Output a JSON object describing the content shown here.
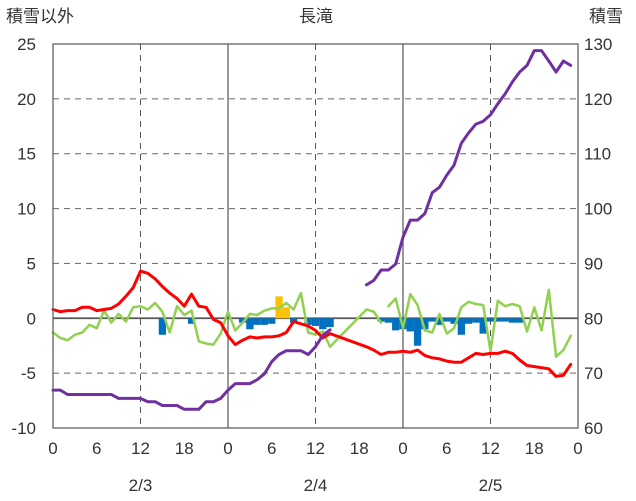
{
  "chart_data": {
    "type": "line",
    "title": "長滝",
    "ylabel_left": "積雪以外",
    "ylabel_right": "積雪",
    "ylim_left": [
      -10,
      25
    ],
    "ylim_right": [
      60,
      130
    ],
    "yticks_left": [
      "25",
      "20",
      "15",
      "10",
      "5",
      "0",
      "-5",
      "-10"
    ],
    "yticks_right": [
      "130",
      "120",
      "110",
      "100",
      "90",
      "80",
      "70",
      "60"
    ],
    "xlim": [
      0,
      72
    ],
    "xtick_values": [
      0,
      6,
      12,
      18,
      24,
      30,
      36,
      42,
      48,
      54,
      60,
      66,
      72
    ],
    "xtick_labels": [
      "0",
      "6",
      "12",
      "18",
      "0",
      "6",
      "12",
      "18",
      "0",
      "6",
      "12",
      "18",
      "0"
    ],
    "date_labels": [
      {
        "x": 12,
        "text": "2/3"
      },
      {
        "x": 36,
        "text": "2/4"
      },
      {
        "x": 60,
        "text": "2/5"
      }
    ],
    "day_separators": [
      24,
      48
    ],
    "dashed_gridlines_x": [
      12,
      36,
      60
    ],
    "zero_line": true,
    "colors": {
      "snow_depth": "#7030a0",
      "temperature": "#ff0000",
      "wind": "#92d050",
      "precip_blue": "#0070c0",
      "precip_yellow": "#ffc000"
    },
    "snow_depth": [
      [
        0,
        66.9
      ],
      [
        1,
        66.9
      ],
      [
        2,
        66.1
      ],
      [
        3,
        66.1
      ],
      [
        4,
        66.1
      ],
      [
        5,
        66.1
      ],
      [
        6,
        66.1
      ],
      [
        7,
        66.1
      ],
      [
        8,
        66.1
      ],
      [
        9,
        65.4
      ],
      [
        10,
        65.4
      ],
      [
        11,
        65.4
      ],
      [
        12,
        65.4
      ],
      [
        13,
        64.8
      ],
      [
        14,
        64.8
      ],
      [
        15,
        64.1
      ],
      [
        16,
        64.1
      ],
      [
        17,
        64.1
      ],
      [
        18,
        63.4
      ],
      [
        19,
        63.4
      ],
      [
        20,
        63.4
      ],
      [
        21,
        64.8
      ],
      [
        22,
        64.8
      ],
      [
        23,
        65.4
      ],
      [
        24,
        66.9
      ],
      [
        25,
        68.1
      ],
      [
        26,
        68.1
      ],
      [
        27,
        68.1
      ],
      [
        28,
        68.8
      ],
      [
        29,
        69.9
      ],
      [
        30,
        72.1
      ],
      [
        31,
        73.4
      ],
      [
        32,
        74.1
      ],
      [
        33,
        74.1
      ],
      [
        34,
        74.1
      ],
      [
        35,
        73.4
      ],
      [
        36,
        74.8
      ],
      [
        37,
        76.9
      ],
      [
        38,
        77.9
      ],
      [
        39,
        null
      ],
      [
        40,
        null
      ],
      [
        41,
        null
      ],
      [
        42,
        null
      ],
      [
        43,
        null
      ],
      [
        44,
        null
      ],
      [
        45,
        null
      ],
      [
        43,
        86.1
      ],
      [
        44,
        86.9
      ],
      [
        45,
        88.8
      ],
      [
        46,
        88.8
      ],
      [
        47,
        89.9
      ],
      [
        48,
        94.8
      ],
      [
        49,
        97.9
      ],
      [
        50,
        97.9
      ],
      [
        51,
        99.1
      ],
      [
        52,
        102.9
      ],
      [
        53,
        103.9
      ],
      [
        54,
        106.1
      ],
      [
        55,
        107.9
      ],
      [
        56,
        111.9
      ],
      [
        57,
        113.8
      ],
      [
        58,
        115.4
      ],
      [
        59,
        115.9
      ],
      [
        60,
        117.1
      ],
      [
        61,
        119.1
      ],
      [
        62,
        120.9
      ],
      [
        63,
        123.1
      ],
      [
        64,
        124.9
      ],
      [
        65,
        126.1
      ],
      [
        66,
        128.8
      ],
      [
        67,
        128.8
      ],
      [
        68,
        126.9
      ],
      [
        69,
        124.9
      ],
      [
        70,
        126.9
      ],
      [
        71,
        126.1
      ]
    ],
    "temperature": [
      [
        0,
        0.8
      ],
      [
        1,
        0.6
      ],
      [
        2,
        0.7
      ],
      [
        3,
        0.7
      ],
      [
        4,
        1.0
      ],
      [
        5,
        1.0
      ],
      [
        6,
        0.7
      ],
      [
        7,
        0.8
      ],
      [
        8,
        0.9
      ],
      [
        9,
        1.3
      ],
      [
        10,
        2.0
      ],
      [
        11,
        2.8
      ],
      [
        12,
        4.3
      ],
      [
        13,
        4.1
      ],
      [
        14,
        3.6
      ],
      [
        15,
        2.9
      ],
      [
        16,
        2.3
      ],
      [
        17,
        1.8
      ],
      [
        18,
        1.1
      ],
      [
        19,
        2.2
      ],
      [
        20,
        1.1
      ],
      [
        21,
        1.0
      ],
      [
        22,
        -0.1
      ],
      [
        23,
        -0.4
      ],
      [
        24,
        -1.6
      ],
      [
        25,
        -2.4
      ],
      [
        26,
        -2.0
      ],
      [
        27,
        -1.7
      ],
      [
        28,
        -1.8
      ],
      [
        29,
        -1.7
      ],
      [
        30,
        -1.7
      ],
      [
        31,
        -1.6
      ],
      [
        32,
        -1.3
      ],
      [
        33,
        -0.3
      ],
      [
        34,
        -0.5
      ],
      [
        35,
        -0.7
      ],
      [
        36,
        -1.1
      ],
      [
        37,
        -1.8
      ],
      [
        38,
        -1.4
      ],
      [
        43,
        -2.6
      ],
      [
        44,
        -2.9
      ],
      [
        45,
        -3.3
      ],
      [
        46,
        -3.1
      ],
      [
        47,
        -3.1
      ],
      [
        48,
        -3.0
      ],
      [
        49,
        -3.1
      ],
      [
        50,
        -2.9
      ],
      [
        51,
        -3.4
      ],
      [
        52,
        -3.6
      ],
      [
        53,
        -3.7
      ],
      [
        54,
        -3.9
      ],
      [
        55,
        -4.0
      ],
      [
        56,
        -4.0
      ],
      [
        57,
        -3.6
      ],
      [
        58,
        -3.2
      ],
      [
        59,
        -3.3
      ],
      [
        60,
        -3.2
      ],
      [
        61,
        -3.2
      ],
      [
        62,
        -3.0
      ],
      [
        63,
        -3.2
      ],
      [
        64,
        -3.8
      ],
      [
        65,
        -4.3
      ],
      [
        66,
        -4.4
      ],
      [
        67,
        -4.5
      ],
      [
        68,
        -4.6
      ],
      [
        69,
        -5.3
      ],
      [
        70,
        -5.2
      ],
      [
        71,
        -4.2
      ]
    ],
    "wind": [
      [
        0,
        -1.3
      ],
      [
        1,
        -1.8
      ],
      [
        2,
        -2.0
      ],
      [
        3,
        -1.5
      ],
      [
        4,
        -1.3
      ],
      [
        5,
        -0.6
      ],
      [
        6,
        -0.9
      ],
      [
        7,
        0.7
      ],
      [
        8,
        -0.4
      ],
      [
        9,
        0.4
      ],
      [
        10,
        -0.3
      ],
      [
        11,
        1.0
      ],
      [
        12,
        1.1
      ],
      [
        13,
        0.8
      ],
      [
        14,
        1.4
      ],
      [
        15,
        0.6
      ],
      [
        16,
        -1.3
      ],
      [
        17,
        1.1
      ],
      [
        18,
        0.3
      ],
      [
        19,
        0.7
      ],
      [
        20,
        -2.1
      ],
      [
        21,
        -2.3
      ],
      [
        22,
        -2.4
      ],
      [
        23,
        -1.4
      ],
      [
        24,
        0.6
      ],
      [
        25,
        -1.1
      ],
      [
        26,
        -0.4
      ],
      [
        27,
        0.4
      ],
      [
        28,
        0.3
      ],
      [
        29,
        0.7
      ],
      [
        30,
        0.9
      ],
      [
        31,
        0.9
      ],
      [
        32,
        1.4
      ],
      [
        33,
        0.8
      ],
      [
        34,
        2.3
      ],
      [
        35,
        -1.3
      ],
      [
        36,
        -1.5
      ],
      [
        37,
        -1.2
      ],
      [
        38,
        -2.6
      ],
      [
        39,
        -1.9
      ],
      [
        43,
        0.8
      ],
      [
        44,
        0.6
      ],
      [
        45,
        -0.4
      ],
      [
        46,
        null
      ],
      [
        46,
        1.1
      ],
      [
        47,
        1.8
      ],
      [
        48,
        -0.9
      ],
      [
        49,
        2.2
      ],
      [
        50,
        1.2
      ],
      [
        51,
        -1.1
      ],
      [
        52,
        -1.3
      ],
      [
        53,
        0.4
      ],
      [
        54,
        -1.4
      ],
      [
        55,
        -0.9
      ],
      [
        56,
        1.0
      ],
      [
        57,
        1.5
      ],
      [
        58,
        1.3
      ],
      [
        59,
        1.2
      ],
      [
        60,
        -3.0
      ],
      [
        61,
        1.6
      ],
      [
        62,
        1.1
      ],
      [
        63,
        1.3
      ],
      [
        64,
        1.1
      ],
      [
        65,
        -1.2
      ],
      [
        66,
        1.0
      ],
      [
        67,
        -1.1
      ],
      [
        68,
        2.6
      ],
      [
        69,
        -3.5
      ],
      [
        70,
        -2.9
      ],
      [
        71,
        -1.6
      ]
    ],
    "precip_blue": [
      [
        15,
        -1.5
      ],
      [
        19,
        -0.5
      ],
      [
        26,
        -0.4
      ],
      [
        27,
        -1.0
      ],
      [
        28,
        -0.6
      ],
      [
        29,
        -0.6
      ],
      [
        30,
        -0.5
      ],
      [
        33,
        -0.4
      ],
      [
        35,
        -0.6
      ],
      [
        36,
        -0.7
      ],
      [
        37,
        -1.0
      ],
      [
        38,
        -0.8
      ],
      [
        45,
        -0.3
      ],
      [
        46,
        -0.4
      ],
      [
        47,
        -1.1
      ],
      [
        48,
        -1.0
      ],
      [
        49,
        -1.2
      ],
      [
        50,
        -2.5
      ],
      [
        51,
        -1.0
      ],
      [
        52,
        -0.3
      ],
      [
        53,
        -0.6
      ],
      [
        54,
        -0.3
      ],
      [
        55,
        -0.5
      ],
      [
        56,
        -1.5
      ],
      [
        57,
        -0.5
      ],
      [
        58,
        -0.4
      ],
      [
        59,
        -1.4
      ],
      [
        60,
        -0.3
      ],
      [
        61,
        -0.3
      ],
      [
        62,
        -0.3
      ],
      [
        63,
        -0.4
      ],
      [
        64,
        -0.4
      ]
    ],
    "precip_yellow": [
      [
        31,
        2.0
      ],
      [
        32,
        1.0
      ]
    ]
  }
}
